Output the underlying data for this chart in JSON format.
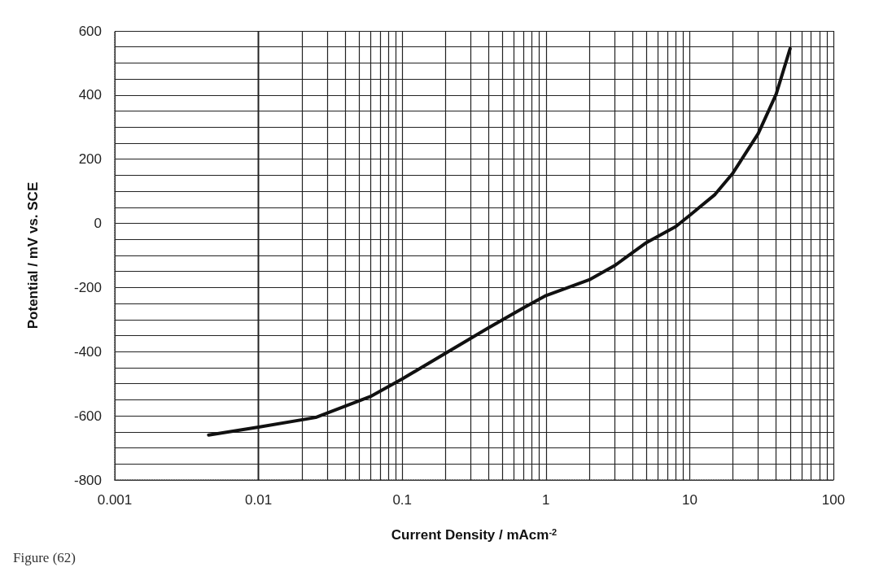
{
  "chart_data": {
    "type": "line",
    "xlabel": "Current Density / mAcm$^{-2}$",
    "ylabel": "Potential / mV vs. SCE",
    "annotations": [
      "Figure (62)"
    ],
    "log": "x",
    "grid": true,
    "marker": "none",
    "line_style": "solid",
    "xlim": [
      0.001,
      100
    ],
    "xticks": [
      0.001,
      0.01,
      0.1,
      1,
      10,
      100
    ],
    "ylim": [
      -800,
      600
    ],
    "yticks": [
      -800,
      -600,
      -400,
      -200,
      0,
      200,
      400,
      600
    ],
    "x": [
      0.0045,
      0.01,
      0.025,
      0.06,
      0.1,
      0.2,
      0.4,
      0.7,
      1,
      2,
      3,
      5,
      8,
      10,
      15,
      20,
      30,
      40,
      50
    ],
    "series": [
      {
        "color": "#111111",
        "values": [
          -660,
          -635,
          -605,
          -540,
          -485,
          -405,
          -325,
          -263,
          -225,
          -176,
          -132,
          -60,
          -10,
          25,
          90,
          157,
          280,
          403,
          545
        ]
      }
    ]
  }
}
